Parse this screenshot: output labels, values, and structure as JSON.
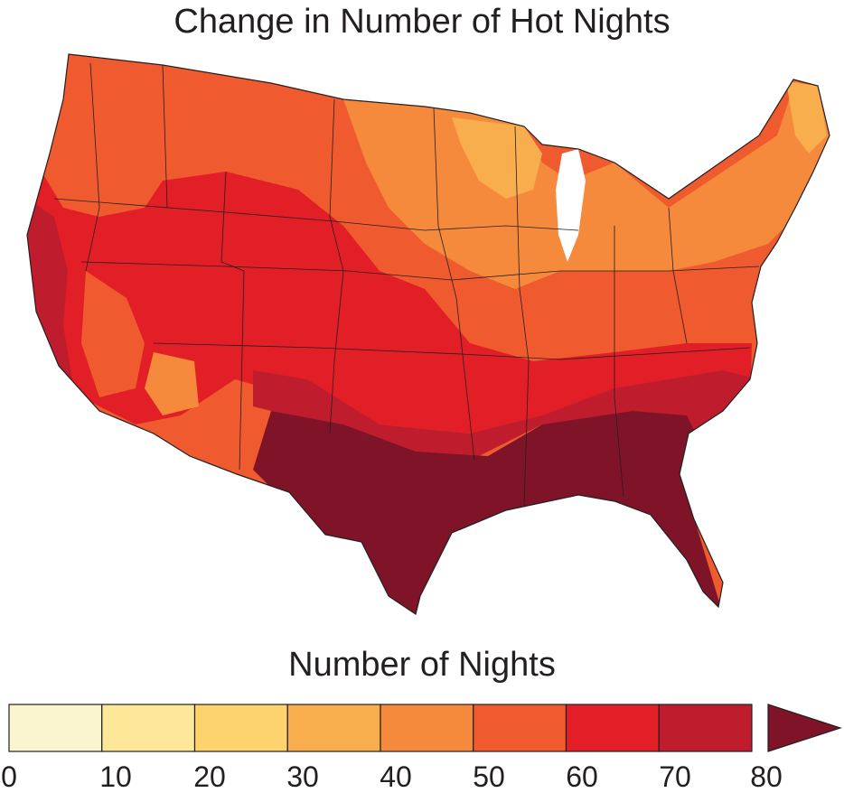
{
  "title": "Change in Number of Hot Nights",
  "legend": {
    "title": "Number of Nights",
    "ticks": [
      "0",
      "10",
      "20",
      "30",
      "40",
      "50",
      "60",
      "70",
      "80"
    ],
    "bins": [
      {
        "range": "0-10",
        "color": "#fbf5cf"
      },
      {
        "range": "10-20",
        "color": "#fde89a"
      },
      {
        "range": "20-30",
        "color": "#fdd36e"
      },
      {
        "range": "30-40",
        "color": "#f9ae4e"
      },
      {
        "range": "40-50",
        "color": "#f58a3c"
      },
      {
        "range": "50-60",
        "color": "#ef5b2e"
      },
      {
        "range": "60-70",
        "color": "#e21f26"
      },
      {
        "range": "70-80",
        "color": "#bf1d2d"
      },
      {
        "range": ">80",
        "color": "#7f1428"
      }
    ]
  }
}
